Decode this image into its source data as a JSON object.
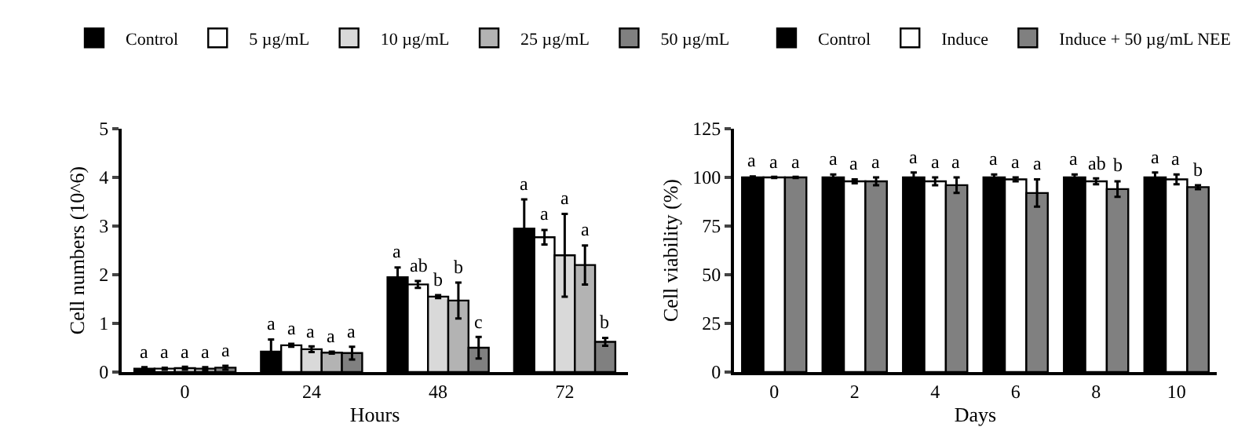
{
  "chart_data": [
    {
      "type": "bar",
      "xlabel": "Hours",
      "ylabel": "Cell numbers (10^6)",
      "categories": [
        "0",
        "24",
        "48",
        "72"
      ],
      "ylim": [
        0,
        5
      ],
      "yticks": [
        0,
        1,
        2,
        3,
        4,
        5
      ],
      "grid": false,
      "legend": "top",
      "series": [
        {
          "name": "Control",
          "color": "#000000",
          "values": [
            0.07,
            0.42,
            1.95,
            2.95
          ],
          "errors": [
            0.03,
            0.25,
            0.2,
            0.6
          ],
          "value_labels": [
            "a",
            "a",
            "a",
            "a"
          ]
        },
        {
          "name": "5 µg/mL",
          "color": "#ffffff",
          "values": [
            0.07,
            0.55,
            1.8,
            2.77
          ],
          "errors": [
            0.02,
            0.03,
            0.07,
            0.15
          ],
          "value_labels": [
            "a",
            "a",
            "ab",
            "a"
          ]
        },
        {
          "name": "10 µg/mL",
          "color": "#d9d9d9",
          "values": [
            0.08,
            0.47,
            1.55,
            2.4
          ],
          "errors": [
            0.03,
            0.06,
            0.03,
            0.85
          ],
          "value_labels": [
            "a",
            "a",
            "b",
            "a"
          ]
        },
        {
          "name": "25 µg/mL",
          "color": "#b3b3b3",
          "values": [
            0.07,
            0.4,
            1.47,
            2.2
          ],
          "errors": [
            0.03,
            0.02,
            0.37,
            0.4
          ],
          "value_labels": [
            "a",
            "a",
            "b",
            "a"
          ]
        },
        {
          "name": "50 µg/mL",
          "color": "#808080",
          "values": [
            0.09,
            0.39,
            0.5,
            0.62
          ],
          "errors": [
            0.04,
            0.13,
            0.22,
            0.08
          ],
          "value_labels": [
            "a",
            "a",
            "c",
            "b"
          ]
        }
      ]
    },
    {
      "type": "bar",
      "xlabel": "Days",
      "ylabel": "Cell viability (%)",
      "categories": [
        "0",
        "2",
        "4",
        "6",
        "8",
        "10"
      ],
      "ylim": [
        0,
        125
      ],
      "yticks": [
        0,
        25,
        50,
        75,
        100,
        125
      ],
      "grid": false,
      "legend": "top",
      "series": [
        {
          "name": "Control",
          "color": "#000000",
          "values": [
            100,
            100,
            100,
            100,
            100,
            100
          ],
          "errors": [
            0.5,
            1.5,
            2.5,
            1.5,
            1.5,
            2.5
          ],
          "value_labels": [
            "a",
            "a",
            "a",
            "a",
            "a",
            "a"
          ]
        },
        {
          "name": "Induce",
          "color": "#ffffff",
          "values": [
            100,
            98,
            98,
            99,
            98,
            99
          ],
          "errors": [
            0.3,
            1,
            2,
            1,
            1.5,
            2.5
          ],
          "value_labels": [
            "a",
            "a",
            "a",
            "a",
            "ab",
            "a"
          ]
        },
        {
          "name": "Induce + 50 µg/mL NEE",
          "color": "#808080",
          "values": [
            100,
            98,
            96,
            92,
            94,
            95
          ],
          "errors": [
            0.3,
            2,
            4,
            7,
            4,
            1
          ],
          "value_labels": [
            "a",
            "a",
            "a",
            "a",
            "b",
            "b"
          ]
        }
      ]
    }
  ]
}
